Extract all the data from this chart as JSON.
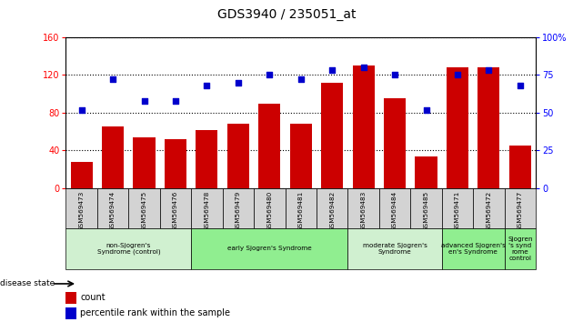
{
  "title": "GDS3940 / 235051_at",
  "samples": [
    "GSM569473",
    "GSM569474",
    "GSM569475",
    "GSM569476",
    "GSM569478",
    "GSM569479",
    "GSM569480",
    "GSM569481",
    "GSM569482",
    "GSM569483",
    "GSM569484",
    "GSM569485",
    "GSM569471",
    "GSM569472",
    "GSM569477"
  ],
  "count": [
    28,
    65,
    54,
    52,
    62,
    68,
    90,
    68,
    112,
    130,
    95,
    34,
    128,
    128,
    45
  ],
  "percentile": [
    52,
    72,
    58,
    58,
    68,
    70,
    75,
    72,
    78,
    80,
    75,
    52,
    75,
    78,
    68
  ],
  "groups": [
    {
      "label": "non-Sjogren's\nSyndrome (control)",
      "start": 0,
      "end": 4,
      "color": "#d0f0d0"
    },
    {
      "label": "early Sjogren's Syndrome",
      "start": 4,
      "end": 9,
      "color": "#90ee90"
    },
    {
      "label": "moderate Sjogren's\nSyndrome",
      "start": 9,
      "end": 12,
      "color": "#d0f0d0"
    },
    {
      "label": "advanced Sjogren's\nen's Syndrome",
      "start": 12,
      "end": 14,
      "color": "#90ee90"
    },
    {
      "label": "Sjogren\n's synd\nrome\ncontrol",
      "start": 14,
      "end": 15,
      "color": "#90ee90"
    }
  ],
  "left_ylim": [
    0,
    160
  ],
  "right_ylim": [
    0,
    100
  ],
  "left_yticks": [
    0,
    40,
    80,
    120,
    160
  ],
  "right_yticks": [
    0,
    25,
    50,
    75,
    100
  ],
  "bar_color": "#cc0000",
  "dot_color": "#0000cc",
  "bg_color": "#ffffff"
}
